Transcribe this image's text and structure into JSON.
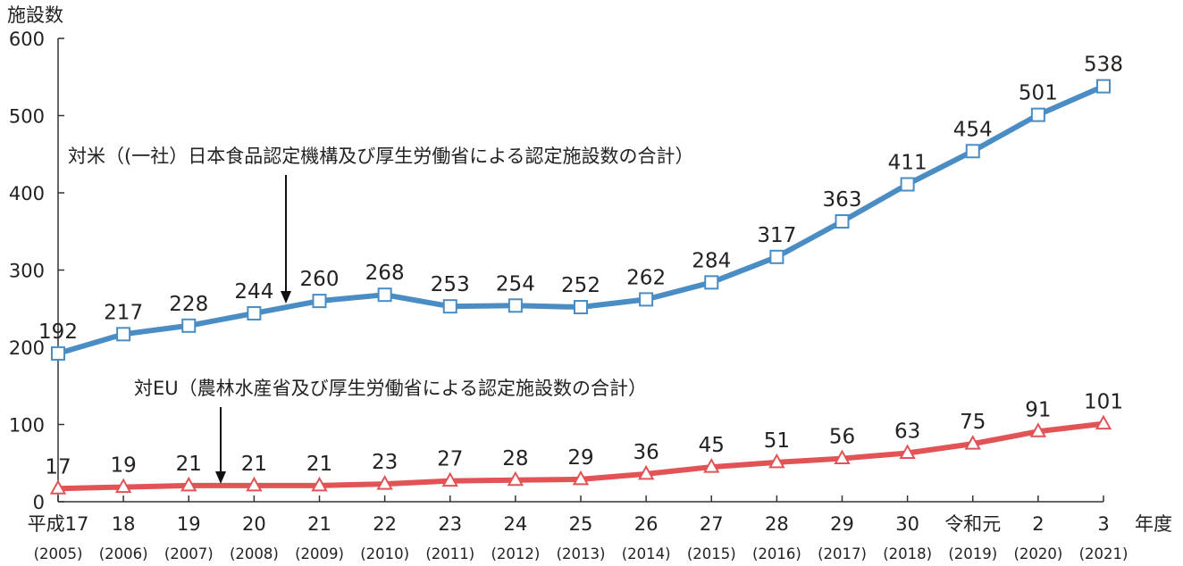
{
  "chart_data": {
    "type": "line",
    "ylabel": "施設数",
    "xlabel": "年度",
    "ylim": [
      0,
      600
    ],
    "yticks": [
      0,
      100,
      200,
      300,
      400,
      500,
      600
    ],
    "categories": [
      "平成17",
      "18",
      "19",
      "20",
      "21",
      "22",
      "23",
      "24",
      "25",
      "26",
      "27",
      "28",
      "29",
      "30",
      "令和元",
      "2",
      "3"
    ],
    "subcategories": [
      "(2005)",
      "(2006)",
      "(2007)",
      "(2008)",
      "(2009)",
      "(2010)",
      "(2011)",
      "(2012)",
      "(2013)",
      "(2014)",
      "(2015)",
      "(2016)",
      "(2017)",
      "(2018)",
      "(2019)",
      "(2020)",
      "(2021)"
    ],
    "series": [
      {
        "name": "対米",
        "label": "対米（(一社）日本食品認定機構及び厚生労働省による認定施設数の合計）",
        "color": "#4a8cc4",
        "marker": "square",
        "values": [
          192,
          217,
          228,
          244,
          260,
          268,
          253,
          254,
          252,
          262,
          284,
          317,
          363,
          411,
          454,
          501,
          538
        ]
      },
      {
        "name": "対EU",
        "label": "対EU（農林水産省及び厚生労働省による認定施設数の合計）",
        "color": "#e25356",
        "marker": "triangle",
        "values": [
          17,
          19,
          21,
          21,
          21,
          23,
          27,
          28,
          29,
          36,
          45,
          51,
          56,
          63,
          75,
          91,
          101
        ]
      }
    ]
  }
}
